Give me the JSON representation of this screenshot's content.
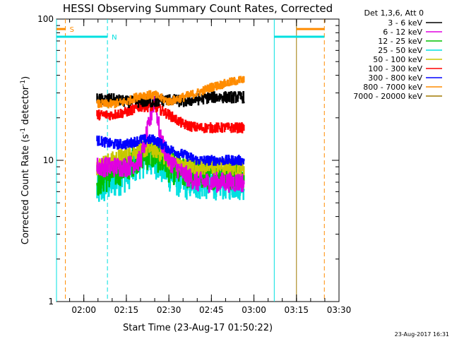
{
  "chart_data": {
    "type": "line",
    "title": "HESSI Observing Summary Count Rates, Corrected",
    "xlabel": "Start Time (23-Aug-17 01:50:22)",
    "ylabel": "Corrected Count Rate (s⁻¹ detector⁻¹)",
    "ylabel_parts": {
      "main": "Corrected Count Rate (s",
      "sup1": "-1",
      "mid": " detector",
      "sup2": "-1",
      "end": ")"
    },
    "x_start": "01:50:22",
    "x_end": "03:30:00",
    "x_ticks": [
      "02:00",
      "02:15",
      "02:30",
      "02:45",
      "03:00",
      "03:15",
      "03:30"
    ],
    "y_scale": "log",
    "ylim": [
      1,
      100
    ],
    "y_ticks": [
      "1",
      "10",
      "100"
    ],
    "legend_title": "Det 1,3,6, Att 0",
    "legend_position": "right",
    "data_window": [
      "02:04:30",
      "02:56:30"
    ],
    "series": [
      {
        "name": "3 - 6 keV",
        "color": "#000000",
        "x": [
          "02:04",
          "02:10",
          "02:15",
          "02:20",
          "02:25",
          "02:30",
          "02:35",
          "02:40",
          "02:45",
          "02:50",
          "02:55"
        ],
        "y": [
          27,
          27,
          26,
          26,
          26,
          27,
          26,
          27,
          28,
          28,
          28
        ]
      },
      {
        "name": "6 - 12 keV",
        "color": "#e000e0",
        "x": [
          "02:04",
          "02:10",
          "02:15",
          "02:20",
          "02:23",
          "02:25",
          "02:27",
          "02:30",
          "02:35",
          "02:40",
          "02:45",
          "02:50",
          "02:55"
        ],
        "y": [
          9,
          9,
          9,
          10,
          18,
          28,
          14,
          10,
          8,
          7,
          7,
          7,
          7
        ]
      },
      {
        "name": "12 - 25 keV",
        "color": "#00c000",
        "x": [
          "02:04",
          "02:10",
          "02:15",
          "02:20",
          "02:25",
          "02:30",
          "02:35",
          "02:40",
          "02:45",
          "02:50",
          "02:55"
        ],
        "y": [
          7,
          8,
          9,
          11,
          11,
          9,
          8,
          8,
          8,
          8,
          8
        ]
      },
      {
        "name": "25 - 50 keV",
        "color": "#00e0e0",
        "x": [
          "02:04",
          "02:10",
          "02:15",
          "02:20",
          "02:25",
          "02:30",
          "02:35",
          "02:40",
          "02:45",
          "02:50",
          "02:55"
        ],
        "y": [
          6,
          7,
          8,
          10,
          10,
          8,
          7,
          7,
          7,
          7,
          7
        ]
      },
      {
        "name": "50 - 100 keV",
        "color": "#c8c800",
        "x": [
          "02:04",
          "02:10",
          "02:15",
          "02:20",
          "02:25",
          "02:30",
          "02:35",
          "02:40",
          "02:45",
          "02:50",
          "02:55"
        ],
        "y": [
          9,
          10,
          11,
          12,
          12,
          10,
          9,
          9,
          9,
          9,
          9
        ]
      },
      {
        "name": "100 - 300 keV",
        "color": "#ff0000",
        "x": [
          "02:04",
          "02:10",
          "02:15",
          "02:20",
          "02:25",
          "02:30",
          "02:35",
          "02:40",
          "02:45",
          "02:50",
          "02:55"
        ],
        "y": [
          21,
          21,
          22,
          24,
          24,
          21,
          18,
          17,
          17,
          17,
          17
        ]
      },
      {
        "name": "300 - 800 keV",
        "color": "#0000ff",
        "x": [
          "02:04",
          "02:10",
          "02:15",
          "02:20",
          "02:25",
          "02:30",
          "02:35",
          "02:40",
          "02:45",
          "02:50",
          "02:55"
        ],
        "y": [
          14,
          13,
          13,
          14,
          14,
          12,
          11,
          10,
          10,
          10,
          10
        ]
      },
      {
        "name": "800 - 7000 keV",
        "color": "#ff8c00",
        "x": [
          "02:04",
          "02:10",
          "02:15",
          "02:20",
          "02:25",
          "02:30",
          "02:35",
          "02:40",
          "02:45",
          "02:50",
          "02:55"
        ],
        "y": [
          25,
          25,
          26,
          29,
          29,
          26,
          28,
          30,
          33,
          35,
          37
        ]
      },
      {
        "name": "7000 - 20000 keV",
        "color": "#a07800",
        "x": [],
        "y": []
      }
    ],
    "vertical_markers": [
      {
        "time": "01:50:22",
        "color": "#00e0e0",
        "style": "solid"
      },
      {
        "time": "01:53:30",
        "color": "#ff8c00",
        "style": "dashed"
      },
      {
        "time": "02:08:20",
        "color": "#00e0e0",
        "style": "dashed"
      },
      {
        "time": "03:07:10",
        "color": "#00e0e0",
        "style": "solid"
      },
      {
        "time": "03:15:00",
        "color": "#a07800",
        "style": "solid"
      },
      {
        "time": "03:24:50",
        "color": "#ff8c00",
        "style": "dashed"
      }
    ],
    "flag_bars": [
      {
        "label": "S",
        "color": "#ff8c00",
        "level": 85,
        "segments": [
          [
            "01:50:22",
            "01:53:30"
          ],
          [
            "03:15:00",
            "03:24:50"
          ]
        ]
      },
      {
        "label": "N",
        "color": "#00e0e0",
        "level": 75,
        "segments": [
          [
            "01:50:22",
            "02:08:20"
          ],
          [
            "03:07:10",
            "03:24:50"
          ]
        ]
      }
    ],
    "grid": false
  },
  "footer": {
    "date_stamp": "23-Aug-2017 16:31"
  }
}
